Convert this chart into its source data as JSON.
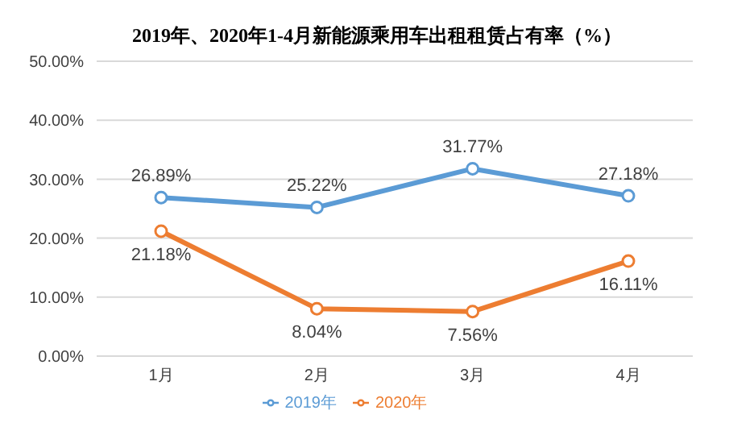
{
  "chart_data": {
    "type": "line",
    "title": "2019年、2020年1-4月新能源乘用车出租租赁占有率（%）",
    "categories": [
      "1月",
      "2月",
      "3月",
      "4月"
    ],
    "series": [
      {
        "name": "2019年",
        "color": "#5b9bd5",
        "values": [
          26.89,
          25.22,
          31.77,
          27.18
        ],
        "value_labels": [
          "26.89%",
          "25.22%",
          "31.77%",
          "27.18%"
        ]
      },
      {
        "name": "2020年",
        "color": "#ed7d31",
        "values": [
          21.18,
          8.04,
          7.56,
          16.11
        ],
        "value_labels": [
          "21.18%",
          "8.04%",
          "7.56%",
          "16.11%"
        ]
      }
    ],
    "ylim": [
      0,
      50
    ],
    "yticks": [
      {
        "value": 0,
        "label": "0.00%"
      },
      {
        "value": 10,
        "label": "10.00%"
      },
      {
        "value": 20,
        "label": "20.00%"
      },
      {
        "value": 30,
        "label": "30.00%"
      },
      {
        "value": 40,
        "label": "40.00%"
      },
      {
        "value": 50,
        "label": "50.00%"
      }
    ],
    "grid": "y",
    "legend": "bottom",
    "marker": "circle",
    "line_style": "solid"
  }
}
